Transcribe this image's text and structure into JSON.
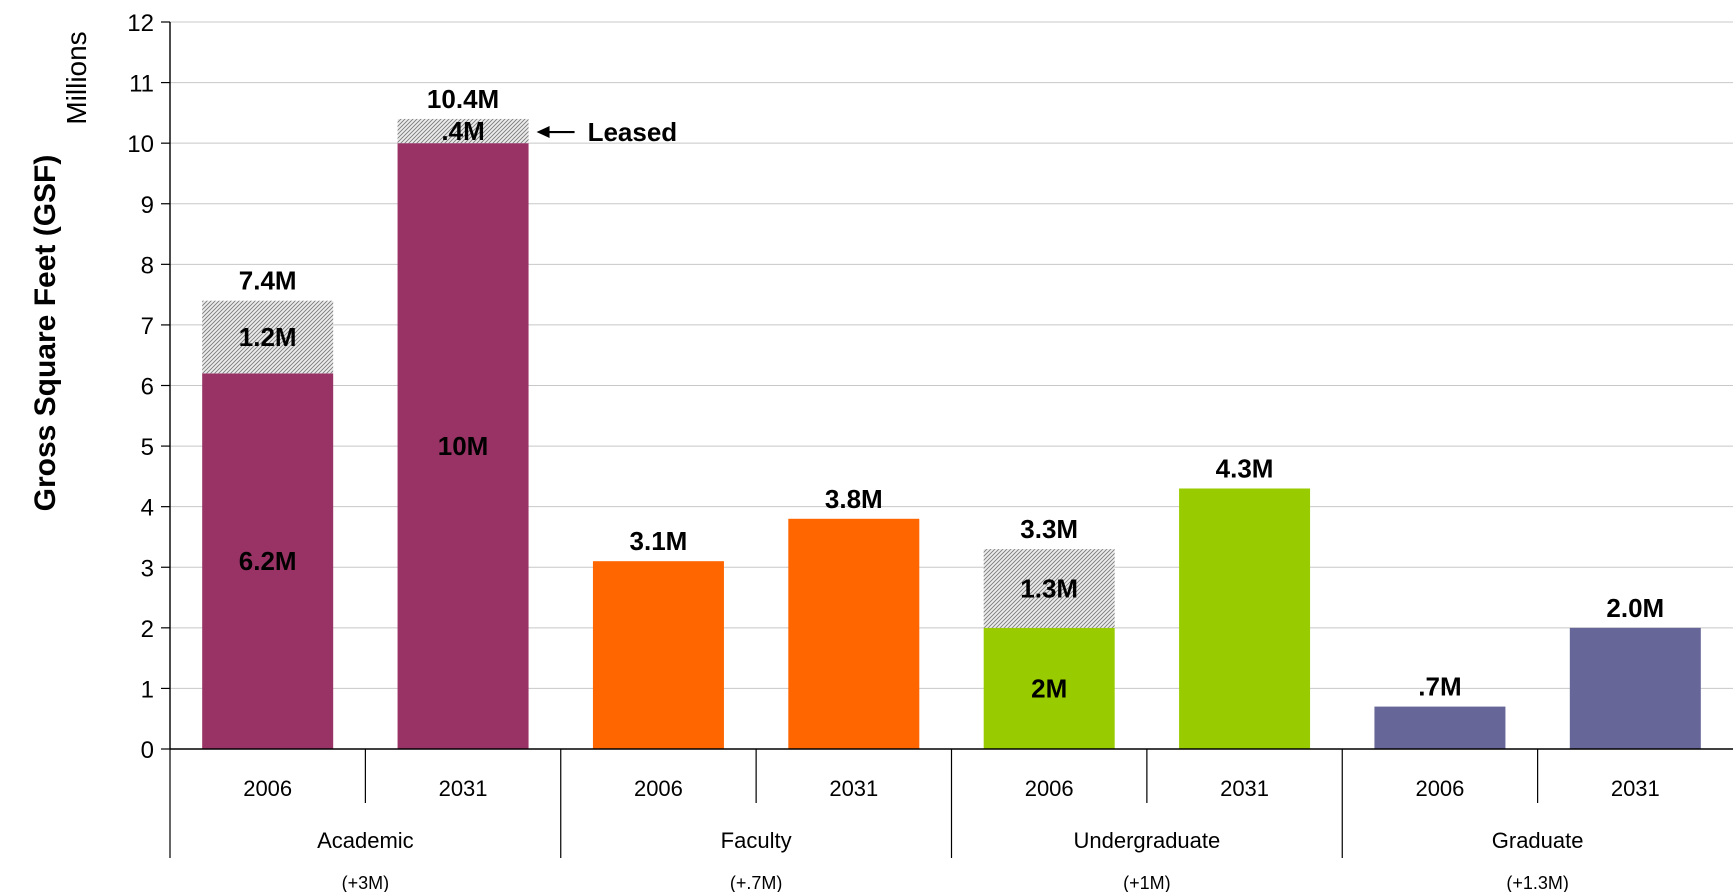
{
  "chart_data": {
    "type": "bar",
    "stacked": true,
    "ylabel": "Gross Square Feet (GSF)",
    "units_label": "Millions",
    "ylim": [
      0,
      12
    ],
    "yticks": [
      0,
      1,
      2,
      3,
      4,
      5,
      6,
      7,
      8,
      9,
      10,
      11,
      12
    ],
    "grid": true,
    "groups": [
      {
        "name": "Academic",
        "change": "(+3M)",
        "color": "#993366",
        "bars": [
          {
            "year": "2006",
            "base": 6.2,
            "leased": 1.2,
            "base_label": "6.2M",
            "leased_label": "1.2M",
            "total_label": "7.4M"
          },
          {
            "year": "2031",
            "base": 10.0,
            "leased": 0.4,
            "base_label": "10M",
            "leased_label": ".4M",
            "total_label": "10.4M"
          }
        ]
      },
      {
        "name": "Faculty",
        "change": "(+.7M)",
        "color": "#FF6600",
        "bars": [
          {
            "year": "2006",
            "base": 3.1,
            "leased": 0,
            "base_label": "",
            "leased_label": "",
            "total_label": "3.1M"
          },
          {
            "year": "2031",
            "base": 3.8,
            "leased": 0,
            "base_label": "",
            "leased_label": "",
            "total_label": "3.8M"
          }
        ]
      },
      {
        "name": "Undergraduate",
        "change": "(+1M)",
        "color": "#99CC00",
        "bars": [
          {
            "year": "2006",
            "base": 2.0,
            "leased": 1.3,
            "base_label": "2M",
            "leased_label": "1.3M",
            "total_label": "3.3M"
          },
          {
            "year": "2031",
            "base": 4.3,
            "leased": 0,
            "base_label": "",
            "leased_label": "",
            "total_label": "4.3M"
          }
        ]
      },
      {
        "name": "Graduate",
        "change": "(+1.3M)",
        "color": "#666699",
        "bars": [
          {
            "year": "2006",
            "base": 0.7,
            "leased": 0,
            "base_label": "",
            "leased_label": "",
            "total_label": ".7M"
          },
          {
            "year": "2031",
            "base": 2.0,
            "leased": 0,
            "base_label": "",
            "leased_label": "",
            "total_label": "2.0M"
          }
        ]
      }
    ],
    "annotation": {
      "text": "Leased",
      "group": 0,
      "bar": 1
    }
  }
}
